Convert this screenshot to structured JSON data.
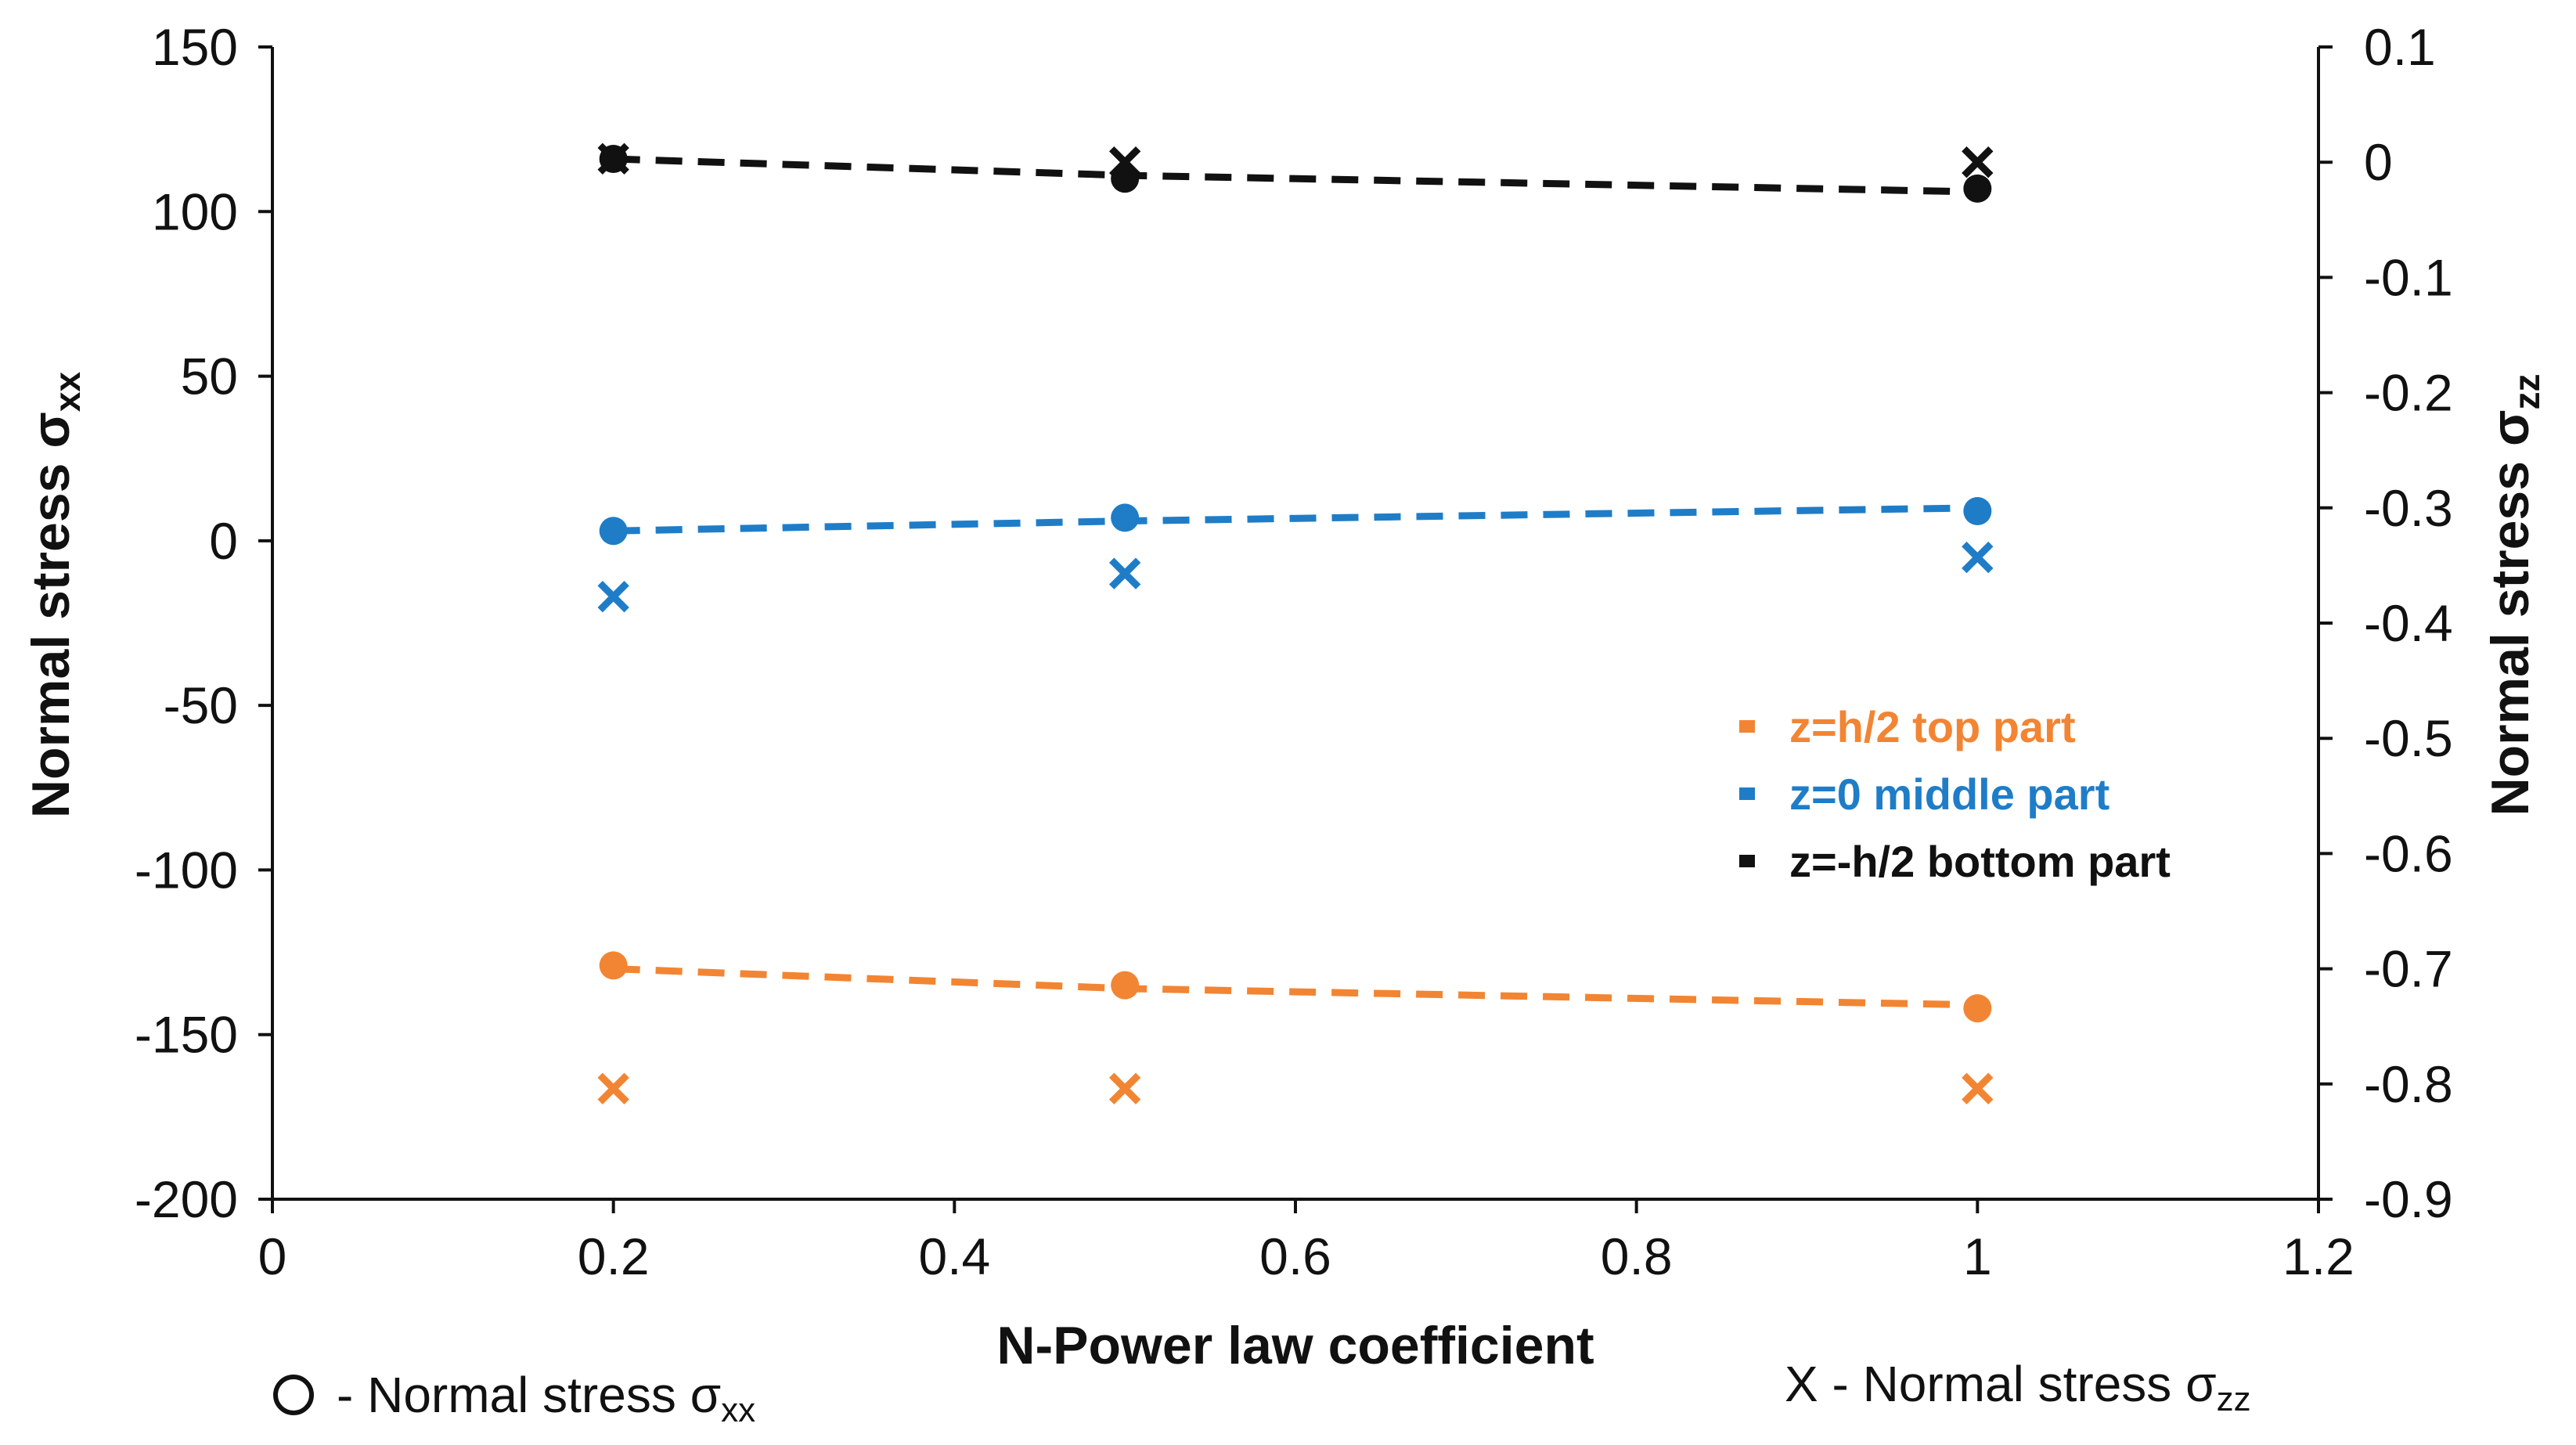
{
  "chart_data": {
    "type": "scatter",
    "xlabel": "N-Power law coefficient",
    "ylabel_left": {
      "main": "Normal stress σ",
      "sub": "xx"
    },
    "ylabel_right": {
      "main": "Normal stress σ",
      "sub": "zz"
    },
    "xlim": [
      0,
      1.2
    ],
    "ylim_left": [
      -200,
      150
    ],
    "ylim_right": [
      -0.9,
      0.1
    ],
    "x_ticks": [
      0,
      0.2,
      0.4,
      0.6,
      0.8,
      1,
      1.2
    ],
    "y_left_ticks": [
      150,
      100,
      50,
      0,
      -50,
      -100,
      -150,
      -200
    ],
    "y_right_ticks": [
      0.1,
      0,
      -0.1,
      -0.2,
      -0.3,
      -0.4,
      -0.5,
      -0.6,
      -0.7,
      -0.8,
      -0.9
    ],
    "grid": false,
    "series": [
      {
        "name": "z=h/2 top part",
        "color": "#F28533",
        "x": [
          0.2,
          0.5,
          1
        ],
        "sigma_xx": [
          -129,
          -135,
          -142
        ],
        "sigma_zz": [
          -0.804,
          -0.804,
          -0.804
        ],
        "sigma_xx_trend": [
          -130,
          -136,
          -141
        ]
      },
      {
        "name": "z=0 middle part",
        "color": "#1F7DC8",
        "x": [
          0.2,
          0.5,
          1
        ],
        "sigma_xx": [
          3,
          7,
          9
        ],
        "sigma_zz": [
          -0.377,
          -0.357,
          -0.343
        ],
        "sigma_xx_trend": [
          3,
          6,
          10
        ]
      },
      {
        "name": "z=-h/2 bottom part",
        "color": "#111111",
        "x": [
          0.2,
          0.5,
          1
        ],
        "sigma_xx": [
          116,
          110,
          107
        ],
        "sigma_zz": [
          0.003,
          0.0,
          0.0
        ],
        "sigma_xx_trend": [
          116,
          111,
          106
        ]
      }
    ],
    "legend_position": "middle-right",
    "marker_key": {
      "circle": {
        "main": "- Normal stress σ",
        "sub": "xx"
      },
      "cross": {
        "symbol": "X",
        "main": " - Normal stress σ",
        "sub": "zz"
      }
    }
  }
}
